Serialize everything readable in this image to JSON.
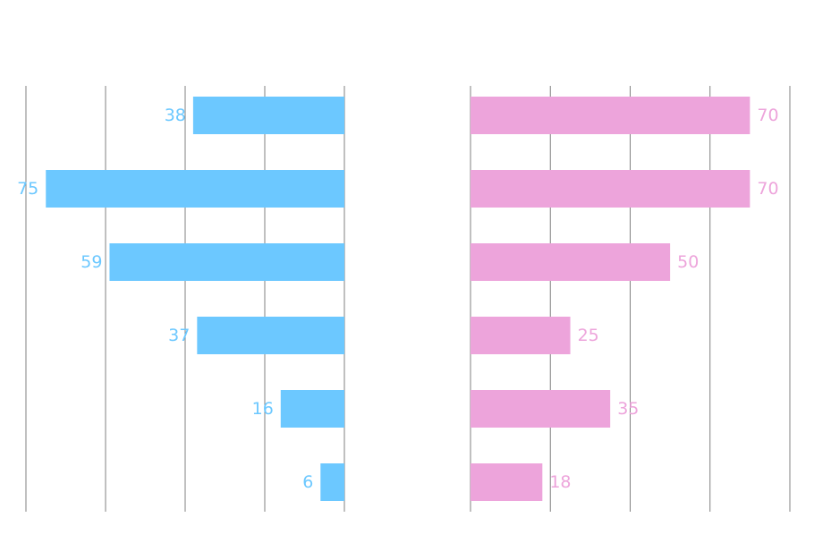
{
  "chart_data": {
    "type": "bar",
    "orientation": "horizontal",
    "layout": "butterfly",
    "grid": true,
    "panels": [
      {
        "side": "left",
        "color": "#6CC8FF",
        "values": [
          38,
          75,
          59,
          37,
          16,
          6
        ],
        "labels": [
          "38",
          "75",
          "59",
          "37",
          "16",
          "6"
        ],
        "xlim": [
          80,
          0
        ]
      },
      {
        "side": "right",
        "color": "#EDA4DB",
        "values": [
          70,
          70,
          50,
          25,
          35,
          18
        ],
        "labels": [
          "70",
          "70",
          "50",
          "25",
          "35",
          "18"
        ],
        "xlim": [
          0,
          80
        ]
      }
    ]
  }
}
